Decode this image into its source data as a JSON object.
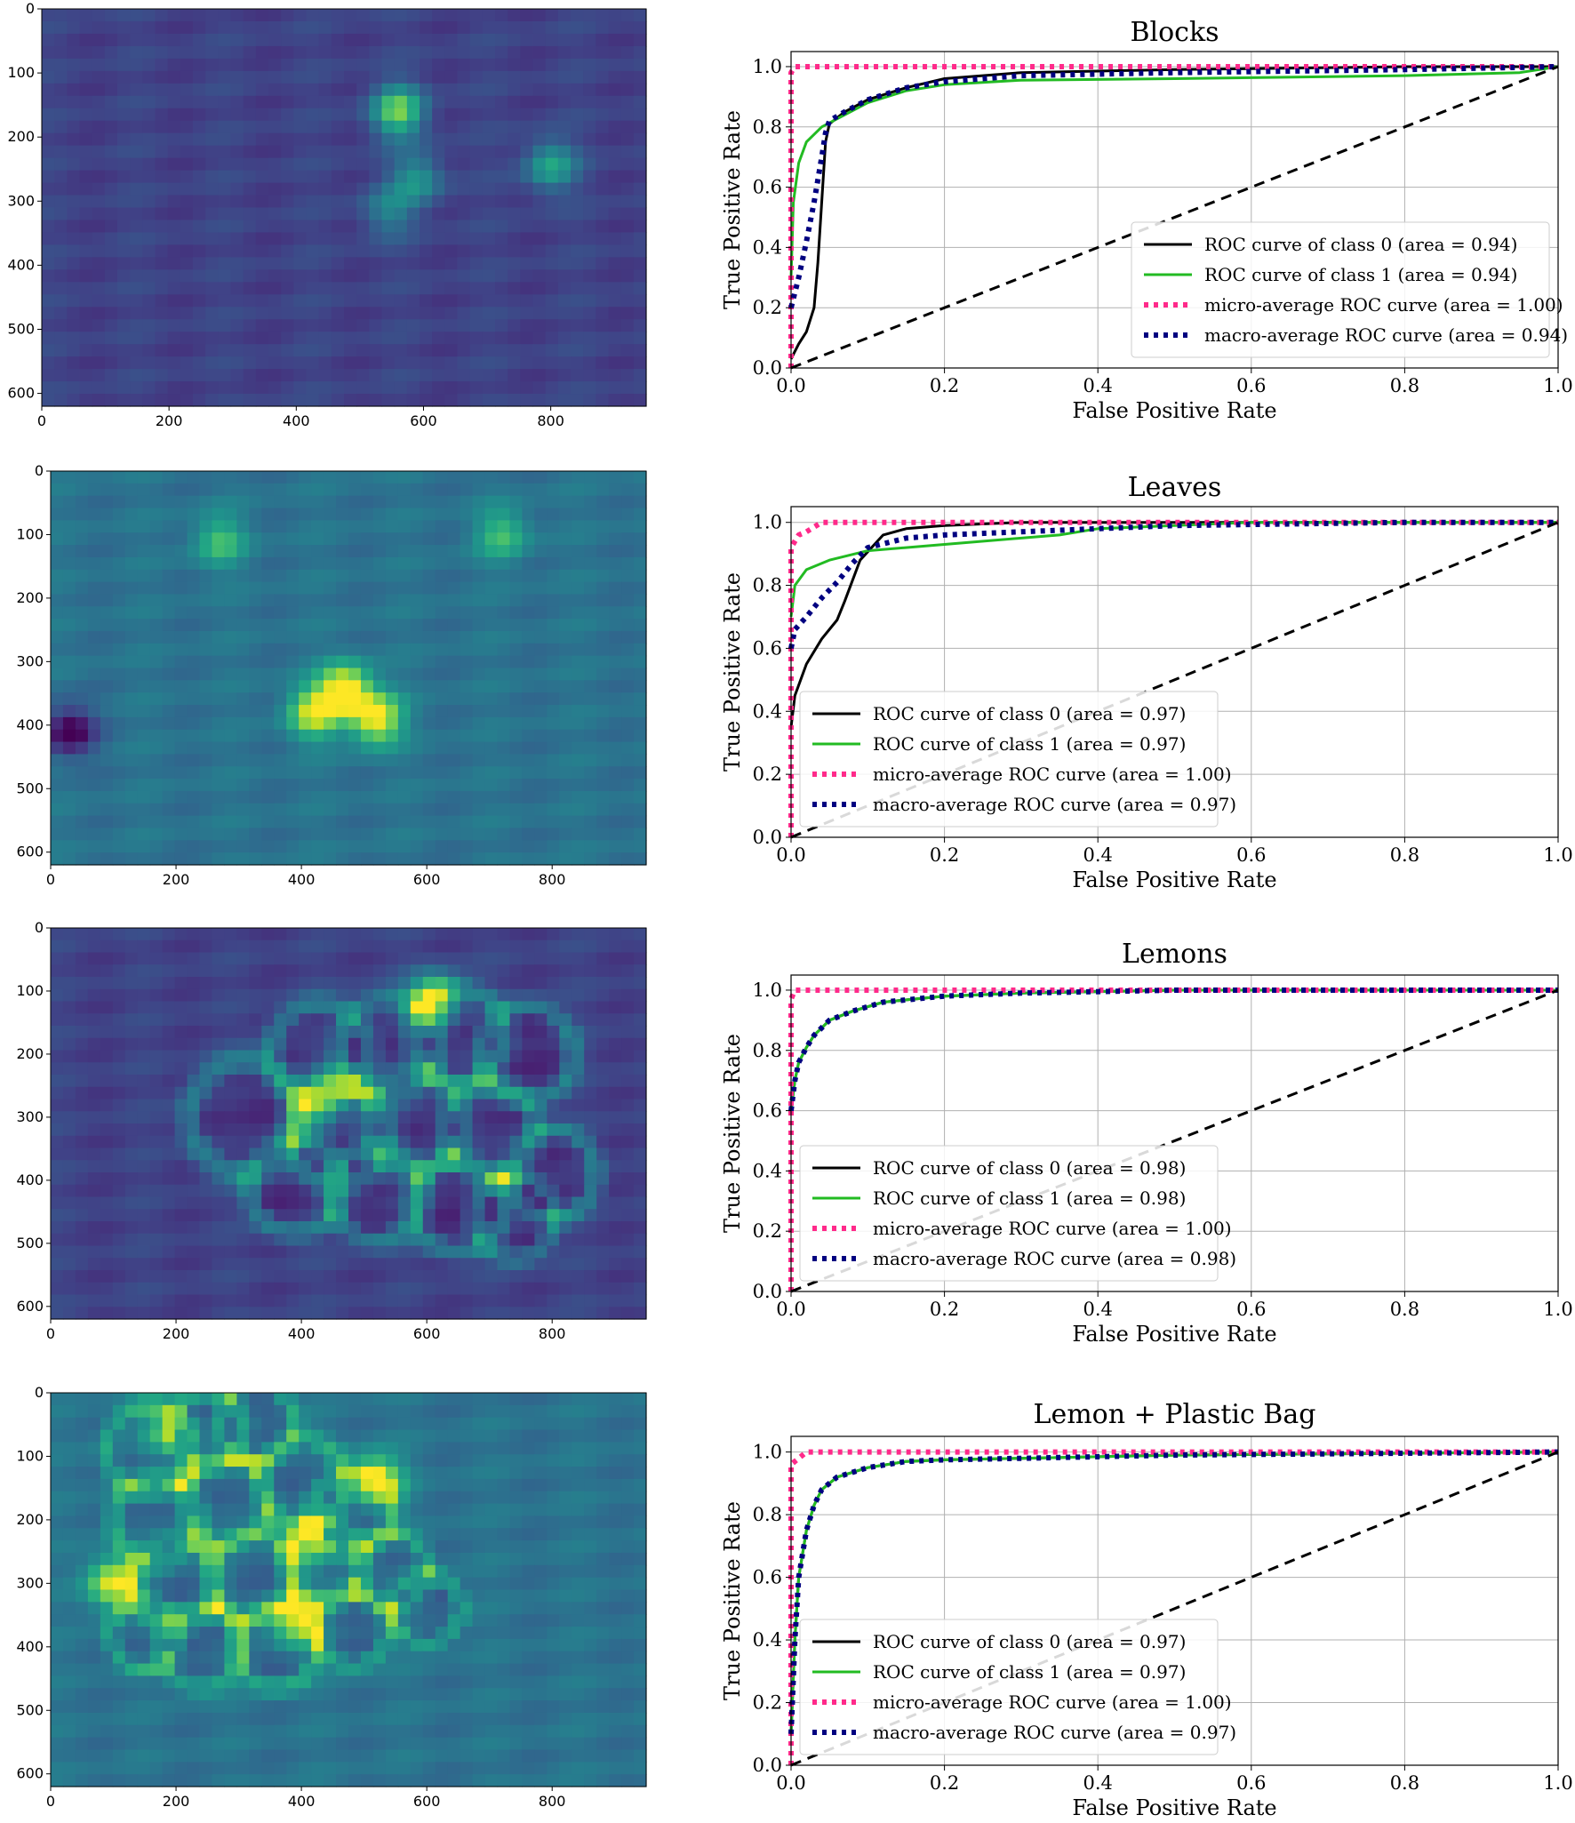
{
  "colors": {
    "class0": "#000000",
    "class1": "#22bb22",
    "micro": "#ff2a8a",
    "macro": "#000080",
    "diagonal": "#000000",
    "grid": "#b0b0b0"
  },
  "chart_data": [
    {
      "type": "heatmap",
      "colormap": "viridis",
      "xlim": [
        0,
        950
      ],
      "ylim": [
        0,
        620
      ],
      "xticks": [
        "0",
        "200",
        "400",
        "600",
        "800"
      ],
      "yticks": [
        "0",
        "100",
        "200",
        "300",
        "400",
        "500",
        "600"
      ],
      "level": "low",
      "hotspots": [
        [
          560,
          160,
          0.85
        ],
        [
          800,
          245,
          0.55
        ],
        [
          590,
          265,
          0.45
        ],
        [
          545,
          315,
          0.35
        ]
      ]
    },
    {
      "type": "line",
      "title": "Blocks",
      "xlabel": "False Positive Rate",
      "ylabel": "True Positive Rate",
      "xlim": [
        0,
        1
      ],
      "ylim": [
        0,
        1.05
      ],
      "xticks": [
        "0.0",
        "0.2",
        "0.4",
        "0.6",
        "0.8",
        "1.0"
      ],
      "yticks": [
        "0.0",
        "0.2",
        "0.4",
        "0.6",
        "0.8",
        "1.0"
      ],
      "grid": true,
      "legend_position": "lower-right",
      "series": [
        {
          "name": "ROC curve of class 0 (area = 0.94)",
          "style": "solid",
          "color_key": "class0",
          "x": [
            0,
            0.01,
            0.02,
            0.03,
            0.035,
            0.04,
            0.045,
            0.05,
            0.07,
            0.1,
            0.15,
            0.2,
            0.3,
            0.5,
            0.8,
            1.0
          ],
          "y": [
            0.03,
            0.08,
            0.12,
            0.2,
            0.35,
            0.55,
            0.75,
            0.81,
            0.85,
            0.89,
            0.93,
            0.96,
            0.98,
            0.99,
            1.0,
            1.0
          ]
        },
        {
          "name": "ROC curve of class 1 (area = 0.94)",
          "style": "solid",
          "color_key": "class1",
          "x": [
            0,
            0.003,
            0.01,
            0.02,
            0.04,
            0.07,
            0.1,
            0.15,
            0.2,
            0.3,
            0.5,
            0.8,
            0.95,
            1.0
          ],
          "y": [
            0.3,
            0.55,
            0.68,
            0.75,
            0.8,
            0.84,
            0.88,
            0.92,
            0.94,
            0.955,
            0.96,
            0.97,
            0.98,
            1.0
          ]
        },
        {
          "name": "micro-average ROC curve (area = 1.00)",
          "style": "dotted",
          "color_key": "micro",
          "x": [
            0,
            0,
            0.005,
            1.0
          ],
          "y": [
            0,
            0.98,
            1.0,
            1.0
          ]
        },
        {
          "name": "macro-average ROC curve (area = 0.94)",
          "style": "dotted",
          "color_key": "macro",
          "x": [
            0,
            0.01,
            0.02,
            0.03,
            0.04,
            0.045,
            0.05,
            0.07,
            0.1,
            0.15,
            0.2,
            0.3,
            0.5,
            0.8,
            1.0
          ],
          "y": [
            0.2,
            0.3,
            0.42,
            0.55,
            0.7,
            0.78,
            0.82,
            0.85,
            0.89,
            0.93,
            0.95,
            0.97,
            0.98,
            0.99,
            1.0
          ]
        },
        {
          "name": "",
          "style": "dashed",
          "color_key": "diagonal",
          "x": [
            0,
            1
          ],
          "y": [
            0,
            1
          ]
        }
      ]
    },
    {
      "type": "heatmap",
      "colormap": "viridis",
      "xlim": [
        0,
        950
      ],
      "ylim": [
        0,
        620
      ],
      "xticks": [
        "0",
        "200",
        "400",
        "600",
        "800"
      ],
      "yticks": [
        "0",
        "100",
        "200",
        "300",
        "400",
        "500",
        "600"
      ],
      "level": "mid",
      "hotspots": [
        [
          470,
          345,
          1.0
        ],
        [
          520,
          390,
          0.9
        ],
        [
          420,
          380,
          0.8
        ],
        [
          270,
          110,
          0.45
        ],
        [
          720,
          100,
          0.45
        ],
        [
          30,
          410,
          -0.6
        ]
      ]
    },
    {
      "type": "line",
      "title": "Leaves",
      "xlabel": "False Positive Rate",
      "ylabel": "True Positive Rate",
      "xlim": [
        0,
        1
      ],
      "ylim": [
        0,
        1.05
      ],
      "xticks": [
        "0.0",
        "0.2",
        "0.4",
        "0.6",
        "0.8",
        "1.0"
      ],
      "yticks": [
        "0.0",
        "0.2",
        "0.4",
        "0.6",
        "0.8",
        "1.0"
      ],
      "grid": true,
      "legend_position": "lower-left",
      "series": [
        {
          "name": "ROC curve of class 0 (area = 0.97)",
          "style": "solid",
          "color_key": "class0",
          "x": [
            0,
            0.005,
            0.02,
            0.04,
            0.06,
            0.07,
            0.09,
            0.12,
            0.15,
            0.2,
            0.3,
            0.5,
            0.8,
            1.0
          ],
          "y": [
            0.35,
            0.45,
            0.55,
            0.63,
            0.69,
            0.75,
            0.88,
            0.96,
            0.98,
            0.99,
            1.0,
            1.0,
            1.0,
            1.0
          ]
        },
        {
          "name": "ROC curve of class 1 (area = 0.97)",
          "style": "solid",
          "color_key": "class1",
          "x": [
            0,
            0.005,
            0.02,
            0.05,
            0.1,
            0.2,
            0.3,
            0.35,
            0.4,
            0.5,
            0.6,
            0.8,
            1.0
          ],
          "y": [
            0.7,
            0.8,
            0.85,
            0.88,
            0.91,
            0.93,
            0.95,
            0.96,
            0.98,
            0.99,
            1.0,
            1.0,
            1.0
          ]
        },
        {
          "name": "micro-average ROC curve (area = 1.00)",
          "style": "dotted",
          "color_key": "micro",
          "x": [
            0,
            0,
            0.01,
            0.02,
            0.04,
            1.0
          ],
          "y": [
            0,
            0.92,
            0.96,
            0.97,
            1.0,
            1.0
          ]
        },
        {
          "name": "macro-average ROC curve (area = 0.97)",
          "style": "dotted",
          "color_key": "macro",
          "x": [
            0,
            0.005,
            0.02,
            0.04,
            0.06,
            0.08,
            0.1,
            0.15,
            0.2,
            0.3,
            0.5,
            0.8,
            1.0
          ],
          "y": [
            0.6,
            0.66,
            0.7,
            0.76,
            0.81,
            0.87,
            0.92,
            0.95,
            0.96,
            0.97,
            0.99,
            1.0,
            1.0
          ]
        },
        {
          "name": "",
          "style": "dashed",
          "color_key": "diagonal",
          "x": [
            0,
            1
          ],
          "y": [
            0,
            1
          ]
        }
      ]
    },
    {
      "type": "heatmap",
      "colormap": "viridis",
      "xlim": [
        0,
        950
      ],
      "ylim": [
        0,
        620
      ],
      "xticks": [
        "0",
        "200",
        "400",
        "600",
        "800"
      ],
      "yticks": [
        "0",
        "100",
        "200",
        "300",
        "400",
        "500",
        "600"
      ],
      "level": "low",
      "hotspots": [
        [
          610,
          115,
          1.0
        ],
        [
          450,
          245,
          0.55
        ],
        [
          420,
          290,
          0.45
        ]
      ],
      "rings": [
        [
          310,
          300,
          90
        ],
        [
          430,
          200,
          80
        ],
        [
          540,
          190,
          80
        ],
        [
          650,
          170,
          75
        ],
        [
          760,
          200,
          75
        ],
        [
          460,
          330,
          80
        ],
        [
          580,
          310,
          80
        ],
        [
          700,
          320,
          75
        ],
        [
          800,
          390,
          70
        ],
        [
          390,
          410,
          75
        ],
        [
          520,
          420,
          75
        ],
        [
          650,
          440,
          75
        ],
        [
          740,
          460,
          65
        ]
      ]
    },
    {
      "type": "line",
      "title": "Lemons",
      "xlabel": "False Positive Rate",
      "ylabel": "True Positive Rate",
      "xlim": [
        0,
        1
      ],
      "ylim": [
        0,
        1.05
      ],
      "xticks": [
        "0.0",
        "0.2",
        "0.4",
        "0.6",
        "0.8",
        "1.0"
      ],
      "yticks": [
        "0.0",
        "0.2",
        "0.4",
        "0.6",
        "0.8",
        "1.0"
      ],
      "grid": true,
      "legend_position": "lower-left",
      "series": [
        {
          "name": "ROC curve of class 0 (area = 0.98)",
          "style": "solid",
          "color_key": "class0",
          "x": [
            0,
            0.005,
            0.01,
            0.02,
            0.03,
            0.05,
            0.08,
            0.12,
            0.2,
            0.3,
            0.5,
            1.0
          ],
          "y": [
            0.6,
            0.7,
            0.76,
            0.81,
            0.85,
            0.9,
            0.93,
            0.96,
            0.98,
            0.99,
            1.0,
            1.0
          ]
        },
        {
          "name": "ROC curve of class 1 (area = 0.98)",
          "style": "solid",
          "color_key": "class1",
          "x": [
            0,
            0.005,
            0.01,
            0.02,
            0.03,
            0.05,
            0.08,
            0.12,
            0.2,
            0.3,
            0.5,
            1.0
          ],
          "y": [
            0.6,
            0.7,
            0.76,
            0.81,
            0.85,
            0.9,
            0.93,
            0.96,
            0.98,
            0.99,
            1.0,
            1.0
          ]
        },
        {
          "name": "micro-average ROC curve (area = 1.00)",
          "style": "dotted",
          "color_key": "micro",
          "x": [
            0,
            0,
            0.005,
            1.0
          ],
          "y": [
            0,
            0.97,
            1.0,
            1.0
          ]
        },
        {
          "name": "macro-average ROC curve (area = 0.98)",
          "style": "dotted",
          "color_key": "macro",
          "x": [
            0,
            0.005,
            0.01,
            0.02,
            0.03,
            0.05,
            0.08,
            0.12,
            0.2,
            0.3,
            0.5,
            1.0
          ],
          "y": [
            0.6,
            0.7,
            0.76,
            0.81,
            0.85,
            0.9,
            0.93,
            0.96,
            0.98,
            0.99,
            1.0,
            1.0
          ]
        },
        {
          "name": "",
          "style": "dashed",
          "color_key": "diagonal",
          "x": [
            0,
            1
          ],
          "y": [
            0,
            1
          ]
        }
      ]
    },
    {
      "type": "heatmap",
      "colormap": "viridis",
      "xlim": [
        0,
        950
      ],
      "ylim": [
        0,
        620
      ],
      "xticks": [
        "0",
        "200",
        "400",
        "600",
        "800"
      ],
      "yticks": [
        "0",
        "100",
        "200",
        "300",
        "400",
        "500",
        "600"
      ],
      "level": "mid",
      "hotspots": [
        [
          520,
          140,
          0.9
        ],
        [
          100,
          300,
          0.85
        ],
        [
          390,
          360,
          0.8
        ],
        [
          410,
          240,
          0.6
        ],
        [
          180,
          60,
          0.5
        ]
      ],
      "rings": [
        [
          160,
          90,
          70
        ],
        [
          250,
          60,
          60
        ],
        [
          330,
          50,
          60
        ],
        [
          170,
          200,
          70
        ],
        [
          280,
          170,
          70
        ],
        [
          400,
          140,
          70
        ],
        [
          480,
          190,
          65
        ],
        [
          200,
          300,
          70
        ],
        [
          320,
          290,
          70
        ],
        [
          440,
          270,
          65
        ],
        [
          540,
          280,
          60
        ],
        [
          240,
          400,
          65
        ],
        [
          360,
          400,
          65
        ],
        [
          480,
          370,
          60
        ],
        [
          600,
          340,
          55
        ],
        [
          150,
          380,
          55
        ]
      ]
    },
    {
      "type": "line",
      "title": "Lemon + Plastic Bag",
      "xlabel": "False Positive Rate",
      "ylabel": "True Positive Rate",
      "xlim": [
        0,
        1
      ],
      "ylim": [
        0,
        1.05
      ],
      "xticks": [
        "0.0",
        "0.2",
        "0.4",
        "0.6",
        "0.8",
        "1.0"
      ],
      "yticks": [
        "0.0",
        "0.2",
        "0.4",
        "0.6",
        "0.8",
        "1.0"
      ],
      "grid": true,
      "legend_position": "lower-left",
      "series": [
        {
          "name": "ROC curve of class 0 (area = 0.97)",
          "style": "solid",
          "color_key": "class0",
          "x": [
            0,
            0.005,
            0.01,
            0.02,
            0.03,
            0.04,
            0.06,
            0.1,
            0.15,
            0.2,
            0.3,
            0.5,
            1.0
          ],
          "y": [
            0.1,
            0.4,
            0.6,
            0.75,
            0.83,
            0.88,
            0.92,
            0.95,
            0.97,
            0.975,
            0.98,
            0.99,
            1.0
          ]
        },
        {
          "name": "ROC curve of class 1 (area = 0.97)",
          "style": "solid",
          "color_key": "class1",
          "x": [
            0,
            0.005,
            0.01,
            0.02,
            0.03,
            0.04,
            0.06,
            0.1,
            0.15,
            0.2,
            0.3,
            0.5,
            1.0
          ],
          "y": [
            0.1,
            0.4,
            0.6,
            0.75,
            0.83,
            0.88,
            0.92,
            0.95,
            0.97,
            0.975,
            0.98,
            0.99,
            1.0
          ]
        },
        {
          "name": "micro-average ROC curve (area = 1.00)",
          "style": "dotted",
          "color_key": "micro",
          "x": [
            0,
            0,
            0.01,
            0.02,
            1.0
          ],
          "y": [
            0,
            0.96,
            0.98,
            1.0,
            1.0
          ]
        },
        {
          "name": "macro-average ROC curve (area = 0.97)",
          "style": "dotted",
          "color_key": "macro",
          "x": [
            0,
            0.005,
            0.01,
            0.02,
            0.03,
            0.04,
            0.06,
            0.1,
            0.15,
            0.2,
            0.3,
            0.5,
            1.0
          ],
          "y": [
            0.1,
            0.4,
            0.6,
            0.75,
            0.83,
            0.88,
            0.92,
            0.95,
            0.97,
            0.975,
            0.98,
            0.99,
            1.0
          ]
        },
        {
          "name": "",
          "style": "dashed",
          "color_key": "diagonal",
          "x": [
            0,
            1
          ],
          "y": [
            0,
            1
          ]
        }
      ]
    }
  ]
}
